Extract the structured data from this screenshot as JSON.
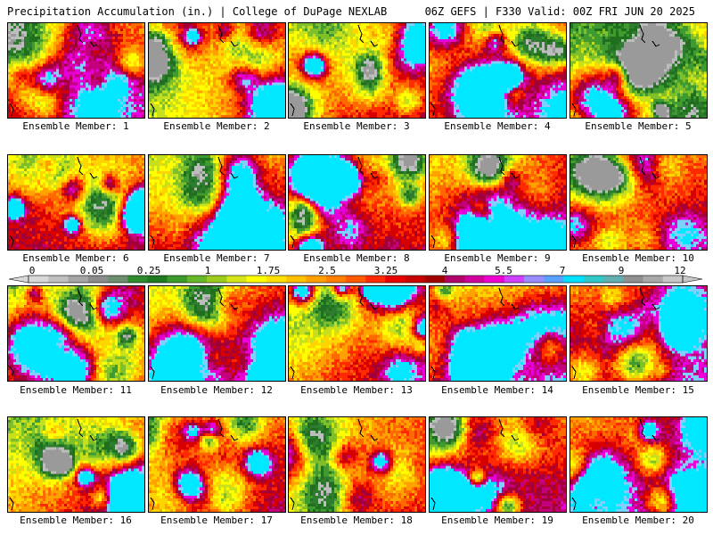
{
  "header": {
    "left": "Precipitation Accumulation (in.) | College of DuPage NEXLAB",
    "right": "06Z GEFS | F330 Valid: 00Z FRI JUN 20 2025"
  },
  "members": [
    {
      "label": "Ensemble Member: 1",
      "seed": 11,
      "bias": [
        0.45,
        0.55,
        0.85
      ]
    },
    {
      "label": "Ensemble Member: 2",
      "seed": 22,
      "bias": [
        0.35,
        0.65,
        0.5
      ]
    },
    {
      "label": "Ensemble Member: 3",
      "seed": 33,
      "bias": [
        0.4,
        0.55,
        0.75
      ]
    },
    {
      "label": "Ensemble Member: 4",
      "seed": 44,
      "bias": [
        0.4,
        0.6,
        0.8
      ]
    },
    {
      "label": "Ensemble Member: 5",
      "seed": 55,
      "bias": [
        0.25,
        0.45,
        0.6
      ]
    },
    {
      "label": "Ensemble Member: 6",
      "seed": 66,
      "bias": [
        0.5,
        0.55,
        0.75
      ]
    },
    {
      "label": "Ensemble Member: 7",
      "seed": 77,
      "bias": [
        0.35,
        0.55,
        0.85
      ]
    },
    {
      "label": "Ensemble Member: 8",
      "seed": 88,
      "bias": [
        0.4,
        0.55,
        0.7
      ]
    },
    {
      "label": "Ensemble Member: 9",
      "seed": 99,
      "bias": [
        0.45,
        0.65,
        0.75
      ]
    },
    {
      "label": "Ensemble Member: 10",
      "seed": 110,
      "bias": [
        0.35,
        0.6,
        0.7
      ]
    },
    {
      "label": "Ensemble Member: 11",
      "seed": 121,
      "bias": [
        0.3,
        0.6,
        0.8
      ]
    },
    {
      "label": "Ensemble Member: 12",
      "seed": 132,
      "bias": [
        0.4,
        0.65,
        0.8
      ]
    },
    {
      "label": "Ensemble Member: 13",
      "seed": 143,
      "bias": [
        0.35,
        0.65,
        0.7
      ]
    },
    {
      "label": "Ensemble Member: 14",
      "seed": 154,
      "bias": [
        0.35,
        0.6,
        0.85
      ]
    },
    {
      "label": "Ensemble Member: 15",
      "seed": 165,
      "bias": [
        0.5,
        0.7,
        0.75
      ]
    },
    {
      "label": "Ensemble Member: 16",
      "seed": 176,
      "bias": [
        0.3,
        0.55,
        0.75
      ]
    },
    {
      "label": "Ensemble Member: 17",
      "seed": 187,
      "bias": [
        0.45,
        0.6,
        0.7
      ]
    },
    {
      "label": "Ensemble Member: 18",
      "seed": 198,
      "bias": [
        0.45,
        0.6,
        0.6
      ]
    },
    {
      "label": "Ensemble Member: 19",
      "seed": 209,
      "bias": [
        0.3,
        0.55,
        0.8
      ]
    },
    {
      "label": "Ensemble Member: 20",
      "seed": 220,
      "bias": [
        0.55,
        0.7,
        0.8
      ]
    }
  ],
  "colorbar": {
    "labels": [
      "0",
      "0.05",
      "0.25",
      "1",
      "1.75",
      "2.5",
      "3.25",
      "4",
      "5.5",
      "7",
      "9",
      "12"
    ],
    "colors": [
      "#d9d9d9",
      "#c0c0c0",
      "#a6a6a6",
      "#8c8c8c",
      "#6e8f6e",
      "#2e8b2e",
      "#1f7a1f",
      "#3a9a2a",
      "#66b82a",
      "#9ccc1e",
      "#d4e61a",
      "#ffff00",
      "#ffe000",
      "#ffc000",
      "#ffa000",
      "#ff7e00",
      "#ff5a00",
      "#ff2a00",
      "#e60000",
      "#c80000",
      "#a00000",
      "#b0006a",
      "#d0009c",
      "#f000d0",
      "#d040ff",
      "#9a8cff",
      "#5aa0ff",
      "#00e0ff",
      "#30c8c8",
      "#60b0b0",
      "#909090",
      "#a8a8a8",
      "#c8c8c8"
    ]
  },
  "map_palette": [
    "#9a9a9a",
    "#bdbdbd",
    "#2e7d2e",
    "#1f6f1f",
    "#3f9a2f",
    "#7fbf2a",
    "#c8e01c",
    "#ffff00",
    "#ffd500",
    "#ffa200",
    "#ff6a00",
    "#ff2a00",
    "#d60000",
    "#a3003a",
    "#c4007c",
    "#e800d8",
    "#7fd0ff",
    "#00e8ff"
  ]
}
